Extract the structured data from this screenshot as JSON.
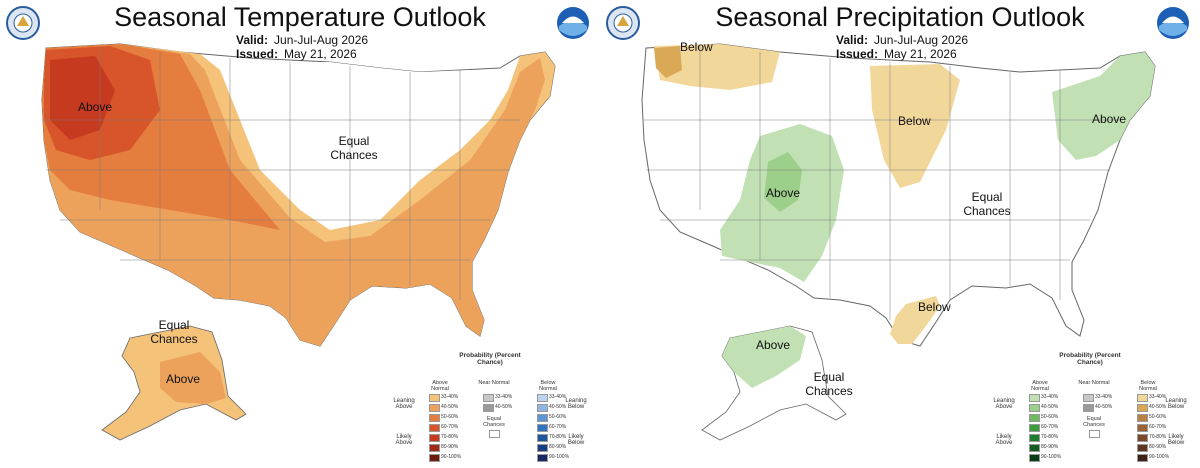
{
  "left": {
    "title": "Seasonal Temperature Outlook",
    "valid_label": "Valid:",
    "valid_value": "Jun-Jul-Aug 2026",
    "issued_label": "Issued:",
    "issued_value": "May 21, 2026",
    "labels": {
      "above_nw": "Above",
      "equal_mid": "Equal Chances",
      "equal_ak": "Equal Chances",
      "above_ak": "Above"
    },
    "colors": {
      "c33": "#f5c27a",
      "c40": "#eda25c",
      "c50": "#e47d3e",
      "c60": "#d8552c",
      "c70": "#c63a1f"
    }
  },
  "right": {
    "title": "Seasonal Precipitation Outlook",
    "valid_label": "Valid:",
    "valid_value": "Jun-Jul-Aug 2026",
    "issued_label": "Issued:",
    "issued_value": "May 21, 2026",
    "labels": {
      "below_nw": "Below",
      "below_mid": "Below",
      "above_ne": "Above",
      "above_sw": "Above",
      "equal_mid": "Equal Chances",
      "below_tx": "Below",
      "above_ak": "Above",
      "equal_ak": "Equal Chances"
    },
    "colors": {
      "green33": "#c1e1b4",
      "green40": "#9ccf8a",
      "brown33": "#f2d79a",
      "brown40": "#d9a955"
    }
  },
  "legend": {
    "title": "Probability (Percent Chance)",
    "above_col": "Above Normal",
    "near_col": "Near Normal",
    "below_col": "Below Normal",
    "leaning_above": "Leaning Above",
    "likely_above": "Likely Above",
    "leaning_below": "Leaning Below",
    "likely_below": "Likely Below",
    "equal_chances": "Equal Chances",
    "steps": [
      "33-40%",
      "40-50%",
      "50-60%",
      "60-70%",
      "70-80%",
      "80-90%",
      "90-100%"
    ],
    "near_steps": [
      "33-40%",
      "40-50%"
    ],
    "temp_above_colors": [
      "#f5c27a",
      "#eda25c",
      "#e47d3e",
      "#d8552c",
      "#c63a1f",
      "#9f2a17",
      "#6b1a0d"
    ],
    "temp_below_colors": [
      "#bcd3ee",
      "#8fb6e3",
      "#5c96d6",
      "#2f73c1",
      "#1d55a1",
      "#173c84",
      "#1b2562"
    ],
    "precip_above_colors": [
      "#c1e1b4",
      "#9ccf8a",
      "#6fbb60",
      "#3f9d3e",
      "#1f7e2c",
      "#125d1f",
      "#0b3d14"
    ],
    "precip_below_colors": [
      "#f2d79a",
      "#d9a955",
      "#b98243",
      "#9a6235",
      "#7c4a2b",
      "#5d3520",
      "#3c2215"
    ],
    "near_colors": [
      "#c8c8c8",
      "#9a9a9a"
    ]
  }
}
